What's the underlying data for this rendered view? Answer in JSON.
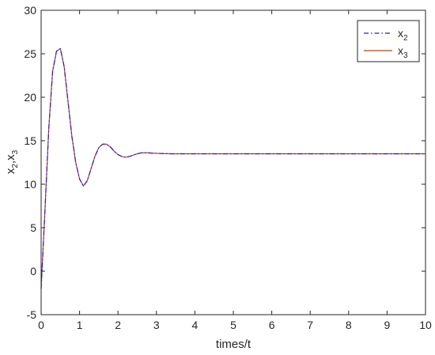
{
  "chart_data": {
    "type": "line",
    "title": "",
    "xlabel": "times/t",
    "ylabel": {
      "base_a": "x",
      "sub_a": "2",
      "sep": ",",
      "base_b": "x",
      "sub_b": "3"
    },
    "xlim": [
      0,
      10
    ],
    "ylim": [
      -5,
      30
    ],
    "xticks": [
      0,
      1,
      2,
      3,
      4,
      5,
      6,
      7,
      8,
      9,
      10
    ],
    "yticks": [
      -5,
      0,
      5,
      10,
      15,
      20,
      25,
      30
    ],
    "grid": false,
    "legend_position": "top-right",
    "series": [
      {
        "name": "x2",
        "label_base": "x",
        "label_sub": "2",
        "color": "#1f1fe0",
        "dash": "dash-dot",
        "x": [
          0,
          0.1,
          0.2,
          0.3,
          0.4,
          0.5,
          0.6,
          0.7,
          0.8,
          0.9,
          1.0,
          1.1,
          1.2,
          1.3,
          1.4,
          1.5,
          1.6,
          1.7,
          1.8,
          1.9,
          2.0,
          2.1,
          2.2,
          2.3,
          2.4,
          2.5,
          2.6,
          2.7,
          2.8,
          2.9,
          3.0,
          3.2,
          3.4,
          3.6,
          3.8,
          4.0,
          4.5,
          5.0,
          6.0,
          7.0,
          8.0,
          9.0,
          10.0
        ],
        "y": [
          -2.0,
          7.0,
          16.5,
          23.0,
          25.3,
          25.6,
          23.5,
          19.5,
          15.5,
          12.5,
          10.6,
          9.8,
          10.4,
          11.8,
          13.2,
          14.2,
          14.6,
          14.6,
          14.3,
          13.8,
          13.4,
          13.2,
          13.1,
          13.2,
          13.35,
          13.5,
          13.6,
          13.62,
          13.6,
          13.57,
          13.55,
          13.52,
          13.5,
          13.5,
          13.5,
          13.5,
          13.5,
          13.5,
          13.5,
          13.5,
          13.5,
          13.5,
          13.5
        ]
      },
      {
        "name": "x3",
        "label_base": "x",
        "label_sub": "3",
        "color": "#b5451b",
        "dash": "solid",
        "x": [
          0,
          0.1,
          0.2,
          0.3,
          0.4,
          0.5,
          0.6,
          0.7,
          0.8,
          0.9,
          1.0,
          1.1,
          1.2,
          1.3,
          1.4,
          1.5,
          1.6,
          1.7,
          1.8,
          1.9,
          2.0,
          2.1,
          2.2,
          2.3,
          2.4,
          2.5,
          2.6,
          2.7,
          2.8,
          2.9,
          3.0,
          3.2,
          3.4,
          3.6,
          3.8,
          4.0,
          4.5,
          5.0,
          6.0,
          7.0,
          8.0,
          9.0,
          10.0
        ],
        "y": [
          -2.0,
          7.0,
          16.5,
          23.0,
          25.3,
          25.6,
          23.5,
          19.5,
          15.5,
          12.5,
          10.6,
          9.8,
          10.4,
          11.8,
          13.2,
          14.2,
          14.6,
          14.6,
          14.3,
          13.8,
          13.4,
          13.2,
          13.1,
          13.2,
          13.35,
          13.5,
          13.6,
          13.62,
          13.6,
          13.57,
          13.55,
          13.52,
          13.5,
          13.5,
          13.5,
          13.5,
          13.5,
          13.5,
          13.5,
          13.5,
          13.5,
          13.5,
          13.5
        ]
      }
    ]
  }
}
